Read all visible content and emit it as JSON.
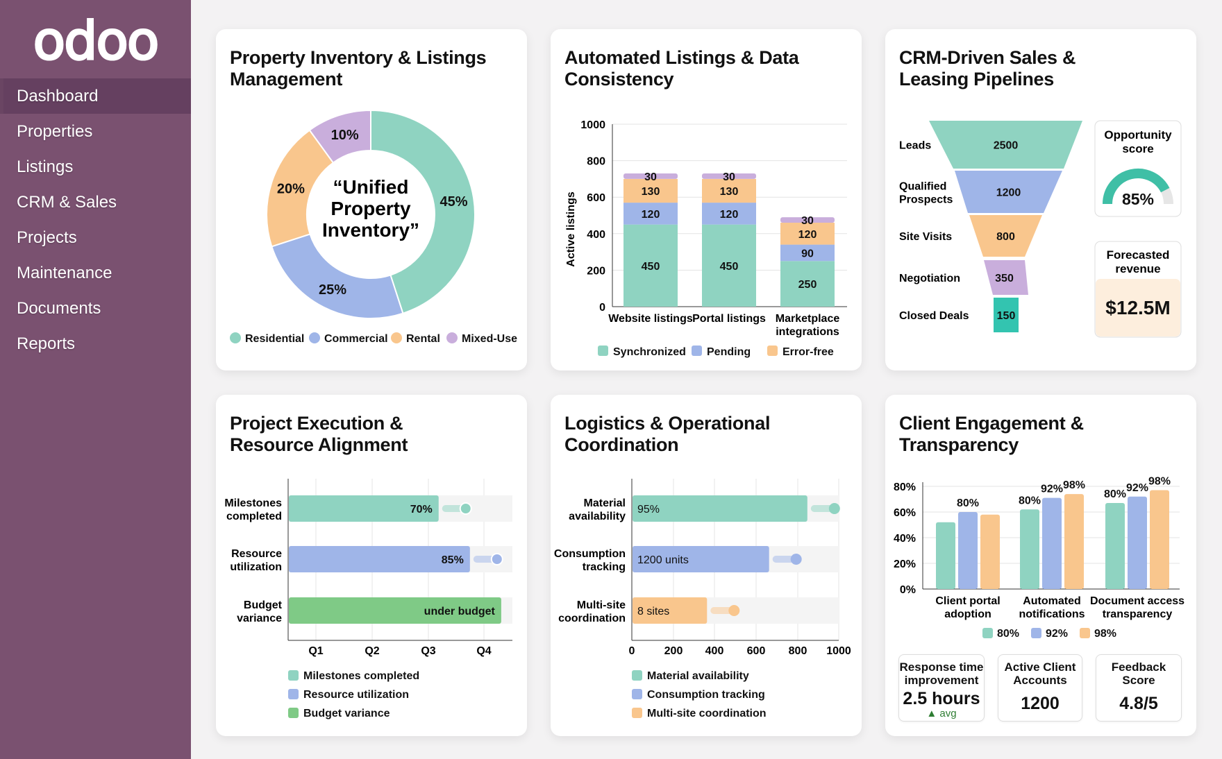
{
  "sidebar": {
    "logo": "odoo",
    "items": [
      {
        "label": "Dashboard",
        "active": true
      },
      {
        "label": "Properties"
      },
      {
        "label": "Listings"
      },
      {
        "label": "CRM & Sales"
      },
      {
        "label": "Projects"
      },
      {
        "label": "Maintenance"
      },
      {
        "label": "Documents"
      },
      {
        "label": "Reports"
      }
    ]
  },
  "colors": {
    "sidebar": "#7a5170",
    "teal": "#8fd3c1",
    "blue": "#9fb5e8",
    "orange": "#f9c68d",
    "purple": "#c9aedc",
    "green": "#7fca86"
  },
  "chart_data": [
    {
      "type": "pie",
      "title": "Property Inventory & Listings Management",
      "center_text": "“Unified Property Inventory”",
      "categories": [
        "Residential",
        "Commercial",
        "Rental",
        "Mixed-Use"
      ],
      "values": [
        45,
        25,
        20,
        10
      ],
      "labels": [
        "45%",
        "25%",
        "20%",
        "10%"
      ]
    },
    {
      "type": "bar",
      "stacked": true,
      "title": "Automated Listings & Data Consistency",
      "ylabel": "Active listings",
      "ylim": [
        0,
        1000
      ],
      "yticks": [
        0,
        200,
        400,
        600,
        800,
        1000
      ],
      "categories": [
        "Website listings",
        "Portal listings",
        "Marketplace integrations"
      ],
      "series": [
        {
          "name": "Synchronized",
          "values": [
            450,
            450,
            250
          ]
        },
        {
          "name": "Pending",
          "values": [
            120,
            120,
            90
          ]
        },
        {
          "name": "Error-free",
          "values": [
            130,
            130,
            120
          ]
        },
        {
          "values": [
            30,
            30,
            30
          ]
        }
      ],
      "grid": true,
      "legend": "bottom"
    },
    {
      "type": "funnel",
      "title": "CRM-Driven Sales & Leasing Pipelines",
      "stages": [
        {
          "label": "Leads",
          "value": 2500
        },
        {
          "label": "Qualified Prospects",
          "value": 1200
        },
        {
          "label": "Site Visits",
          "value": 800
        },
        {
          "label": "Negotiation",
          "value": 350
        },
        {
          "label": "Closed Deals",
          "value": 150
        }
      ],
      "opportunity": {
        "label": "Opportunity score",
        "value": "85%",
        "fraction": 0.85
      },
      "forecast": {
        "label": "Forecasted revenue",
        "value": "$12.5M"
      }
    },
    {
      "type": "bar",
      "orientation": "horizontal",
      "title": "Project Execution & Resource Alignment",
      "xticks": [
        "Q1",
        "Q2",
        "Q3",
        "Q4"
      ],
      "categories": [
        "Milestones completed",
        "Resource utilization",
        "Budget variance"
      ],
      "values": [
        0.67,
        0.81,
        0.95
      ],
      "data_labels": [
        "70%",
        "85%",
        "under budget"
      ],
      "legend": "bottom"
    },
    {
      "type": "bar",
      "orientation": "horizontal",
      "title": "Logistics & Operational Coordination",
      "xlim": [
        0,
        1000
      ],
      "xticks": [
        0,
        200,
        400,
        600,
        800,
        1000
      ],
      "categories": [
        "Material availability",
        "Consumption tracking",
        "Multi-site coordination"
      ],
      "values": [
        845,
        660,
        360
      ],
      "data_labels": [
        "95%",
        "1200 units",
        "8 sites"
      ],
      "legend": "bottom"
    },
    {
      "type": "bar",
      "title": "Client Engagement & Transparency",
      "ylim": [
        0,
        80
      ],
      "yticks": [
        "0%",
        "20%",
        "40%",
        "60%",
        "80%"
      ],
      "categories": [
        "Client portal adoption",
        "Automated notifications",
        "Document access transparency"
      ],
      "series": [
        {
          "name": "80%",
          "values": [
            52,
            62,
            67
          ]
        },
        {
          "name": "92%",
          "values": [
            60,
            71,
            72
          ]
        },
        {
          "name": "98%",
          "values": [
            58,
            74,
            77
          ]
        }
      ],
      "data_labels": [
        [
          "",
          "80%",
          ""
        ],
        [
          "80%",
          "92%",
          "98%"
        ],
        [
          "80%",
          "92%",
          "98%"
        ]
      ],
      "legend": "bottom"
    }
  ],
  "kpis": [
    {
      "label": "Response time improvement",
      "value": "2.5 hours",
      "note": "avg"
    },
    {
      "label": "Active Client Accounts",
      "value": "1200"
    },
    {
      "label": "Feedback Score",
      "value": "4.8/5"
    }
  ]
}
